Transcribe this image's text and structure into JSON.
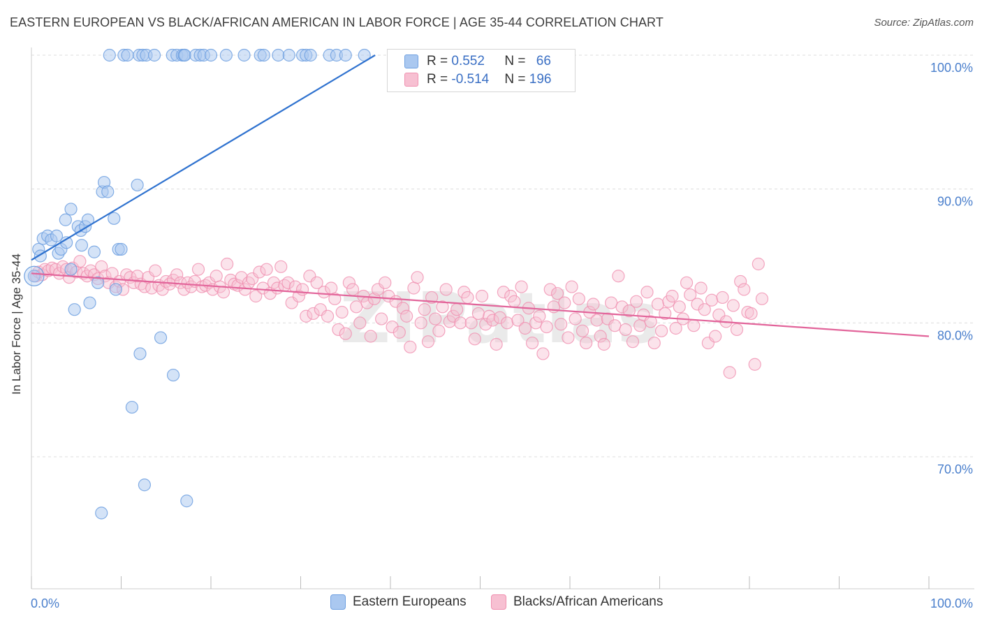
{
  "title": "EASTERN EUROPEAN VS BLACK/AFRICAN AMERICAN IN LABOR FORCE | AGE 35-44 CORRELATION CHART",
  "source": "Source: ZipAtlas.com",
  "watermark": "ZIPatlas",
  "colors": {
    "blue": "#6fa0e0",
    "blue_fill": "#aac8f0",
    "blue_line": "#2f72cf",
    "pink": "#f090b0",
    "pink_fill": "#f7c0d2",
    "pink_line": "#e2649a",
    "tick_text": "#4a7fcc"
  },
  "legend": {
    "rows": [
      {
        "r_label": "R = ",
        "r_value": "0.552",
        "n_label": "N = ",
        "n_value": "66"
      },
      {
        "r_label": "R = ",
        "r_value": "-0.514",
        "n_label": "N = ",
        "n_value": "196"
      }
    ]
  },
  "bottom_legend": [
    "Eastern Europeans",
    "Blacks/African Americans"
  ],
  "chart_data": {
    "type": "scatter",
    "title": "EASTERN EUROPEAN VS BLACK/AFRICAN AMERICAN IN LABOR FORCE | AGE 35-44 CORRELATION CHART",
    "xlabel": "",
    "ylabel": "In Labor Force | Age 35-44",
    "xlim": [
      0,
      100
    ],
    "ylim": [
      61,
      101.5
    ],
    "x_tick_labels": [
      "0.0%",
      "100.0%"
    ],
    "y_ticks": [
      70,
      80,
      90,
      100
    ],
    "y_tick_labels": [
      "70.0%",
      "80.0%",
      "90.0%",
      "100.0%"
    ],
    "grid": true,
    "legend_position": "top-center",
    "series": [
      {
        "name": "Eastern Europeans",
        "R": 0.552,
        "N": 66,
        "trend": {
          "x": [
            0,
            38.3
          ],
          "y": [
            84.7,
            100.0
          ]
        },
        "points": [
          [
            0.3,
            83.5
          ],
          [
            0.8,
            85.5
          ],
          [
            1.0,
            85.0
          ],
          [
            1.3,
            86.3
          ],
          [
            1.8,
            86.5
          ],
          [
            2.2,
            86.2
          ],
          [
            2.8,
            86.5
          ],
          [
            3.0,
            85.2
          ],
          [
            3.3,
            85.5
          ],
          [
            3.8,
            87.7
          ],
          [
            3.9,
            86.0
          ],
          [
            4.4,
            84.0
          ],
          [
            4.4,
            88.5
          ],
          [
            4.8,
            81.0
          ],
          [
            5.2,
            87.2
          ],
          [
            5.5,
            86.9
          ],
          [
            5.6,
            85.8
          ],
          [
            6.0,
            87.2
          ],
          [
            6.3,
            87.7
          ],
          [
            6.5,
            81.5
          ],
          [
            7.0,
            85.3
          ],
          [
            7.4,
            83.0
          ],
          [
            7.8,
            65.8
          ],
          [
            7.9,
            89.8
          ],
          [
            8.1,
            90.5
          ],
          [
            8.5,
            89.8
          ],
          [
            9.2,
            87.8
          ],
          [
            9.4,
            82.5
          ],
          [
            9.7,
            85.5
          ],
          [
            10.0,
            85.5
          ],
          [
            11.2,
            73.7
          ],
          [
            11.8,
            90.3
          ],
          [
            12.1,
            77.7
          ],
          [
            12.6,
            67.9
          ],
          [
            14.4,
            78.9
          ],
          [
            15.8,
            76.1
          ],
          [
            17.3,
            66.7
          ],
          [
            8.7,
            100
          ],
          [
            10.3,
            100
          ],
          [
            10.7,
            100
          ],
          [
            12.0,
            100
          ],
          [
            12.4,
            100
          ],
          [
            12.8,
            100
          ],
          [
            13.7,
            100
          ],
          [
            15.7,
            100
          ],
          [
            16.2,
            100
          ],
          [
            16.8,
            100
          ],
          [
            17.0,
            100
          ],
          [
            17.1,
            100
          ],
          [
            18.3,
            100
          ],
          [
            18.8,
            100
          ],
          [
            19.2,
            100
          ],
          [
            20.0,
            100
          ],
          [
            21.7,
            100
          ],
          [
            23.7,
            100
          ],
          [
            25.5,
            100
          ],
          [
            25.9,
            100
          ],
          [
            27.5,
            100
          ],
          [
            28.7,
            100
          ],
          [
            30.2,
            100
          ],
          [
            30.6,
            100
          ],
          [
            31.1,
            100
          ],
          [
            33.2,
            100
          ],
          [
            34.0,
            100
          ],
          [
            35.0,
            100
          ],
          [
            37.1,
            100
          ]
        ]
      },
      {
        "name": "Blacks/African Americans",
        "R": -0.514,
        "N": 196,
        "trend": {
          "x": [
            0,
            100
          ],
          "y": [
            83.7,
            79.0
          ]
        },
        "points": [
          [
            0.5,
            83.5
          ],
          [
            0.8,
            83.8
          ],
          [
            1.2,
            83.6
          ],
          [
            1.5,
            84.0
          ],
          [
            1.9,
            83.9
          ],
          [
            2.3,
            84.1
          ],
          [
            2.7,
            84.0
          ],
          [
            3.1,
            83.7
          ],
          [
            3.5,
            84.2
          ],
          [
            3.9,
            84.0
          ],
          [
            4.2,
            83.4
          ],
          [
            4.6,
            84.1
          ],
          [
            5.0,
            83.8
          ],
          [
            5.4,
            84.6
          ],
          [
            5.8,
            83.7
          ],
          [
            6.2,
            83.5
          ],
          [
            6.6,
            83.9
          ],
          [
            7.0,
            83.6
          ],
          [
            7.4,
            83.3
          ],
          [
            7.8,
            84.2
          ],
          [
            8.2,
            83.5
          ],
          [
            8.6,
            83.0
          ],
          [
            9.0,
            83.7
          ],
          [
            9.4,
            82.7
          ],
          [
            9.8,
            83.1
          ],
          [
            10.2,
            82.5
          ],
          [
            10.6,
            83.6
          ],
          [
            11.0,
            83.4
          ],
          [
            11.4,
            83.0
          ],
          [
            11.8,
            83.5
          ],
          [
            12.2,
            82.9
          ],
          [
            12.6,
            82.7
          ],
          [
            13.0,
            83.4
          ],
          [
            13.4,
            82.6
          ],
          [
            13.8,
            83.9
          ],
          [
            14.2,
            82.8
          ],
          [
            14.6,
            82.5
          ],
          [
            15.0,
            83.1
          ],
          [
            15.4,
            82.9
          ],
          [
            15.8,
            83.2
          ],
          [
            16.2,
            83.6
          ],
          [
            16.6,
            83.0
          ],
          [
            17.0,
            82.5
          ],
          [
            17.4,
            83.0
          ],
          [
            17.8,
            82.7
          ],
          [
            18.2,
            83.1
          ],
          [
            18.6,
            84.0
          ],
          [
            19.0,
            82.7
          ],
          [
            19.4,
            82.8
          ],
          [
            19.8,
            83.0
          ],
          [
            20.2,
            82.5
          ],
          [
            20.6,
            83.5
          ],
          [
            21.0,
            82.7
          ],
          [
            21.4,
            82.3
          ],
          [
            21.8,
            84.4
          ],
          [
            22.2,
            83.2
          ],
          [
            22.6,
            82.9
          ],
          [
            23.0,
            82.8
          ],
          [
            23.4,
            83.4
          ],
          [
            23.8,
            82.5
          ],
          [
            24.2,
            83.0
          ],
          [
            24.6,
            83.3
          ],
          [
            25.0,
            82.0
          ],
          [
            25.4,
            83.8
          ],
          [
            25.8,
            82.6
          ],
          [
            26.2,
            84.0
          ],
          [
            26.6,
            82.2
          ],
          [
            27.0,
            83.0
          ],
          [
            27.4,
            82.6
          ],
          [
            27.8,
            84.2
          ],
          [
            28.2,
            82.8
          ],
          [
            28.6,
            83.0
          ],
          [
            29.0,
            81.5
          ],
          [
            29.4,
            82.7
          ],
          [
            29.8,
            82.0
          ],
          [
            30.2,
            82.5
          ],
          [
            30.6,
            80.5
          ],
          [
            31.0,
            83.5
          ],
          [
            31.4,
            80.7
          ],
          [
            31.8,
            83.0
          ],
          [
            32.2,
            81.0
          ],
          [
            32.6,
            82.3
          ],
          [
            33.0,
            80.5
          ],
          [
            33.4,
            82.6
          ],
          [
            33.8,
            81.8
          ],
          [
            34.2,
            79.5
          ],
          [
            34.6,
            80.8
          ],
          [
            35.0,
            79.2
          ],
          [
            35.4,
            83.0
          ],
          [
            35.8,
            82.5
          ],
          [
            36.2,
            81.2
          ],
          [
            36.6,
            80.0
          ],
          [
            37.0,
            82.0
          ],
          [
            37.4,
            81.5
          ],
          [
            37.8,
            79.0
          ],
          [
            38.2,
            81.8
          ],
          [
            38.6,
            82.5
          ],
          [
            39.0,
            80.3
          ],
          [
            39.4,
            83.0
          ],
          [
            39.8,
            82.0
          ],
          [
            40.2,
            79.7
          ],
          [
            40.6,
            81.6
          ],
          [
            41.0,
            79.3
          ],
          [
            41.4,
            81.1
          ],
          [
            41.8,
            80.5
          ],
          [
            42.2,
            78.2
          ],
          [
            42.6,
            82.6
          ],
          [
            43.0,
            83.4
          ],
          [
            43.4,
            80.0
          ],
          [
            43.8,
            81.0
          ],
          [
            44.2,
            78.6
          ],
          [
            44.6,
            81.9
          ],
          [
            45.0,
            80.3
          ],
          [
            45.4,
            79.4
          ],
          [
            45.8,
            81.2
          ],
          [
            46.2,
            82.5
          ],
          [
            46.6,
            80.1
          ],
          [
            47.0,
            80.5
          ],
          [
            47.4,
            81.0
          ],
          [
            47.8,
            80.0
          ],
          [
            48.2,
            82.3
          ],
          [
            48.6,
            81.9
          ],
          [
            49.0,
            80.0
          ],
          [
            49.4,
            78.8
          ],
          [
            49.8,
            80.7
          ],
          [
            50.2,
            82.0
          ],
          [
            50.6,
            79.9
          ],
          [
            51.0,
            80.5
          ],
          [
            51.4,
            80.2
          ],
          [
            51.8,
            78.4
          ],
          [
            52.2,
            80.4
          ],
          [
            52.6,
            82.3
          ],
          [
            53.0,
            80.0
          ],
          [
            53.4,
            82.0
          ],
          [
            53.8,
            81.6
          ],
          [
            54.2,
            80.2
          ],
          [
            54.6,
            82.7
          ],
          [
            55.0,
            79.6
          ],
          [
            55.4,
            81.1
          ],
          [
            55.8,
            78.5
          ],
          [
            56.2,
            80.0
          ],
          [
            56.6,
            80.5
          ],
          [
            57.0,
            77.7
          ],
          [
            57.4,
            79.7
          ],
          [
            57.8,
            82.5
          ],
          [
            58.2,
            81.2
          ],
          [
            58.6,
            82.2
          ],
          [
            59.0,
            79.9
          ],
          [
            59.4,
            81.5
          ],
          [
            59.8,
            78.9
          ],
          [
            60.2,
            82.7
          ],
          [
            60.6,
            80.3
          ],
          [
            61.0,
            81.8
          ],
          [
            61.4,
            79.4
          ],
          [
            61.8,
            78.5
          ],
          [
            62.2,
            80.8
          ],
          [
            62.6,
            81.4
          ],
          [
            63.0,
            80.2
          ],
          [
            63.4,
            79.0
          ],
          [
            63.8,
            78.4
          ],
          [
            64.2,
            80.3
          ],
          [
            64.6,
            81.5
          ],
          [
            65.0,
            79.8
          ],
          [
            65.4,
            83.5
          ],
          [
            65.8,
            81.2
          ],
          [
            66.2,
            79.5
          ],
          [
            66.6,
            80.9
          ],
          [
            67.0,
            78.6
          ],
          [
            67.4,
            81.6
          ],
          [
            67.8,
            79.8
          ],
          [
            68.2,
            80.6
          ],
          [
            68.6,
            82.3
          ],
          [
            69.0,
            80.1
          ],
          [
            69.4,
            78.5
          ],
          [
            69.8,
            81.4
          ],
          [
            70.2,
            79.4
          ],
          [
            70.6,
            80.7
          ],
          [
            71.0,
            81.6
          ],
          [
            71.4,
            82.0
          ],
          [
            71.8,
            79.6
          ],
          [
            72.2,
            81.2
          ],
          [
            72.6,
            80.3
          ],
          [
            73.0,
            83.0
          ],
          [
            73.4,
            82.1
          ],
          [
            73.8,
            79.8
          ],
          [
            74.2,
            81.4
          ],
          [
            74.6,
            82.6
          ],
          [
            75.0,
            81.0
          ],
          [
            75.4,
            78.5
          ],
          [
            75.8,
            81.7
          ],
          [
            76.2,
            79.0
          ],
          [
            76.6,
            80.6
          ],
          [
            77.0,
            81.9
          ],
          [
            77.4,
            80.1
          ],
          [
            77.8,
            76.3
          ],
          [
            78.2,
            81.3
          ],
          [
            78.6,
            79.5
          ],
          [
            79.0,
            83.1
          ],
          [
            79.4,
            82.5
          ],
          [
            79.8,
            80.8
          ],
          [
            80.2,
            80.7
          ],
          [
            80.6,
            76.9
          ],
          [
            81.0,
            84.4
          ],
          [
            81.4,
            81.8
          ]
        ]
      }
    ]
  }
}
